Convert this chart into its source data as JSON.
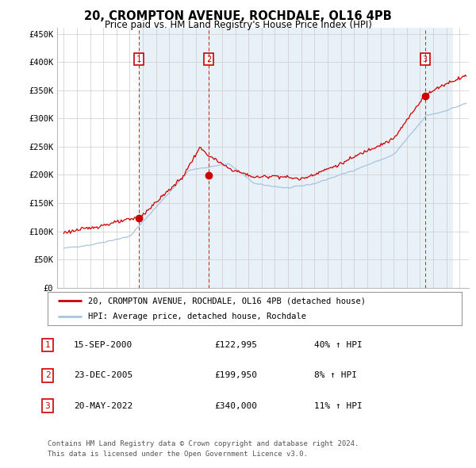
{
  "title1": "20, CROMPTON AVENUE, ROCHDALE, OL16 4PB",
  "title2": "Price paid vs. HM Land Registry's House Price Index (HPI)",
  "sale_dates_decimal": [
    2000.708,
    2005.977,
    2022.375
  ],
  "sale_prices": [
    122995,
    199950,
    340000
  ],
  "sale_labels": [
    "1",
    "2",
    "3"
  ],
  "legend_line1": "20, CROMPTON AVENUE, ROCHDALE, OL16 4PB (detached house)",
  "legend_line2": "HPI: Average price, detached house, Rochdale",
  "table_rows": [
    [
      "1",
      "15-SEP-2000",
      "£122,995",
      "40% ↑ HPI"
    ],
    [
      "2",
      "23-DEC-2005",
      "£199,950",
      "8% ↑ HPI"
    ],
    [
      "3",
      "20-MAY-2022",
      "£340,000",
      "11% ↑ HPI"
    ]
  ],
  "footnote1": "Contains HM Land Registry data © Crown copyright and database right 2024.",
  "footnote2": "This data is licensed under the Open Government Licence v3.0.",
  "ylim": [
    0,
    460000
  ],
  "yticks": [
    0,
    50000,
    100000,
    150000,
    200000,
    250000,
    300000,
    350000,
    400000,
    450000
  ],
  "ytick_labels": [
    "£0",
    "£50K",
    "£100K",
    "£150K",
    "£200K",
    "£250K",
    "£300K",
    "£350K",
    "£400K",
    "£450K"
  ],
  "hpi_color": "#a8c4e0",
  "price_color": "#cc0000",
  "sale_marker_color": "#cc0000",
  "shaded_region_color": "#ddeeff",
  "grid_color": "#cccccc",
  "background_color": "#ffffff",
  "sale_box_color": "#cc0000",
  "x_start_year": 1995,
  "x_end_year": 2025,
  "xlim_left": 1994.5,
  "xlim_right": 2025.7
}
